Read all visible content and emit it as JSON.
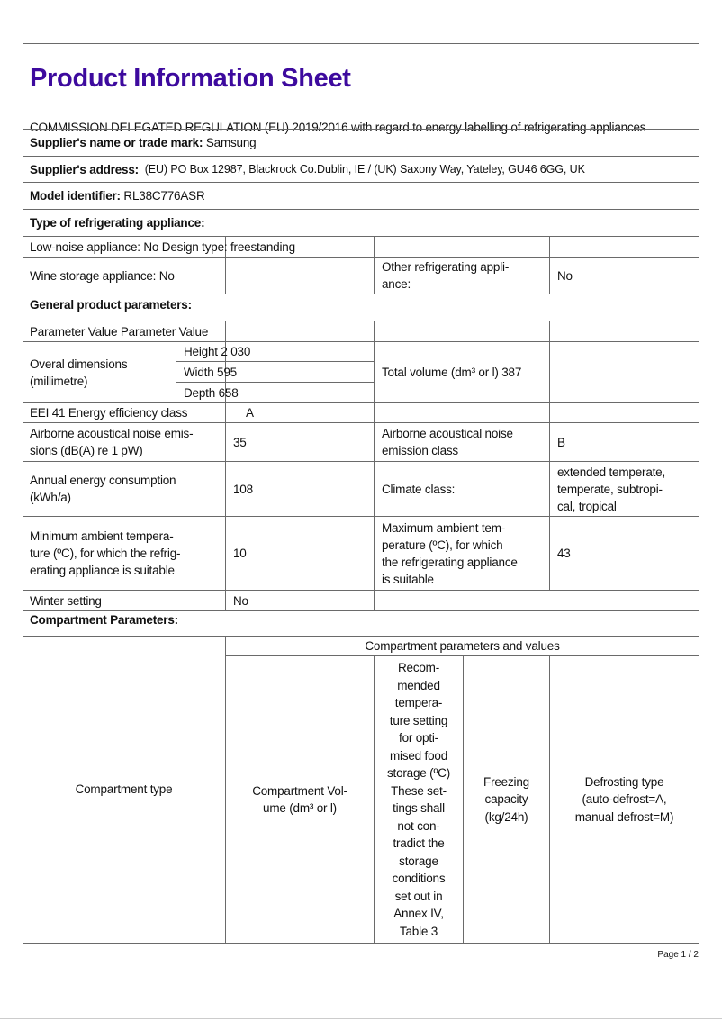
{
  "title": "Product Information Sheet",
  "regulation": "COMMISSION DELEGATED REGULATION (EU) 2019/2016 with regard to energy labelling of refrigerating appliances",
  "supplier_name": {
    "label": "Supplier's name or trade mark:",
    "value": " Samsung"
  },
  "supplier_address": {
    "label": "Supplier's address:",
    "value": "  (EU) PO Box 12987, Blackrock Co.Dublin, IE / (UK) Saxony Way, Yateley, GU46 6GG, UK"
  },
  "model_identifier": {
    "label": "Model identifier:",
    "value": " RL38C776ASR"
  },
  "type_heading": "Type of refrigerating appliance:",
  "type_rows": {
    "low_noise": "Low-noise appliance: No Design type: freestanding",
    "wine_storage": "Wine storage appliance: No",
    "other_label": "Other refrigerating appli-\nance:",
    "other_value": "No"
  },
  "general_heading": "General product parameters:",
  "general": {
    "param_header": "Parameter Value Parameter Value",
    "dimensions_label": "Overal dimensions\n(millimetre)",
    "height": "Height 2 030",
    "width": "Width 595",
    "depth": "Depth 658",
    "total_volume": "Total volume (dm³ or l) 387",
    "eei": "EEI 41 Energy efficiency class",
    "energy_class": "A",
    "noise_label": "Airborne acoustical noise emis-\nsions (dB(A) re 1 pW)",
    "noise_value": "35",
    "noise_class_label": "Airborne acoustical noise\nemission class",
    "noise_class_value": "B",
    "annual_label": "Annual energy consumption\n(kWh/a)",
    "annual_value": "108",
    "climate_label": "Climate class:",
    "climate_value": "extended temperate,\ntemperate, subtropi-\ncal, tropical",
    "min_label": "Minimum ambient tempera-\nture (ºC), for which the refrig-\nerating appliance is suitable",
    "min_value": "10",
    "max_label": "Maximum ambient tem-\nperature (ºC), for which\nthe refrigerating appliance\nis suitable",
    "max_value": "43",
    "winter_label": "Winter setting",
    "winter_value": "No"
  },
  "compartment_heading": "Compartment Parameters:",
  "compartment": {
    "type_header": "Compartment type",
    "group_header": "Compartment parameters and values",
    "volume_header": "Compartment Vol-\nume (dm³ or l)",
    "temp_header": "Recom-\nmended\ntempera-\nture setting\nfor opti-\nmised food\nstorage (ºC)\nThese set-\ntings shall\nnot con-\ntradict the\nstorage\nconditions\nset out in\nAnnex IV,\nTable 3",
    "freezing_header": "Freezing\ncapacity\n(kg/24h)",
    "defrost_header": "Defrosting type\n(auto-defrost=A,\nmanual defrost=M)"
  },
  "footer": "Page 1 / 2",
  "colors": {
    "title": "#3d0a9e",
    "border": "#6a6a6a"
  }
}
